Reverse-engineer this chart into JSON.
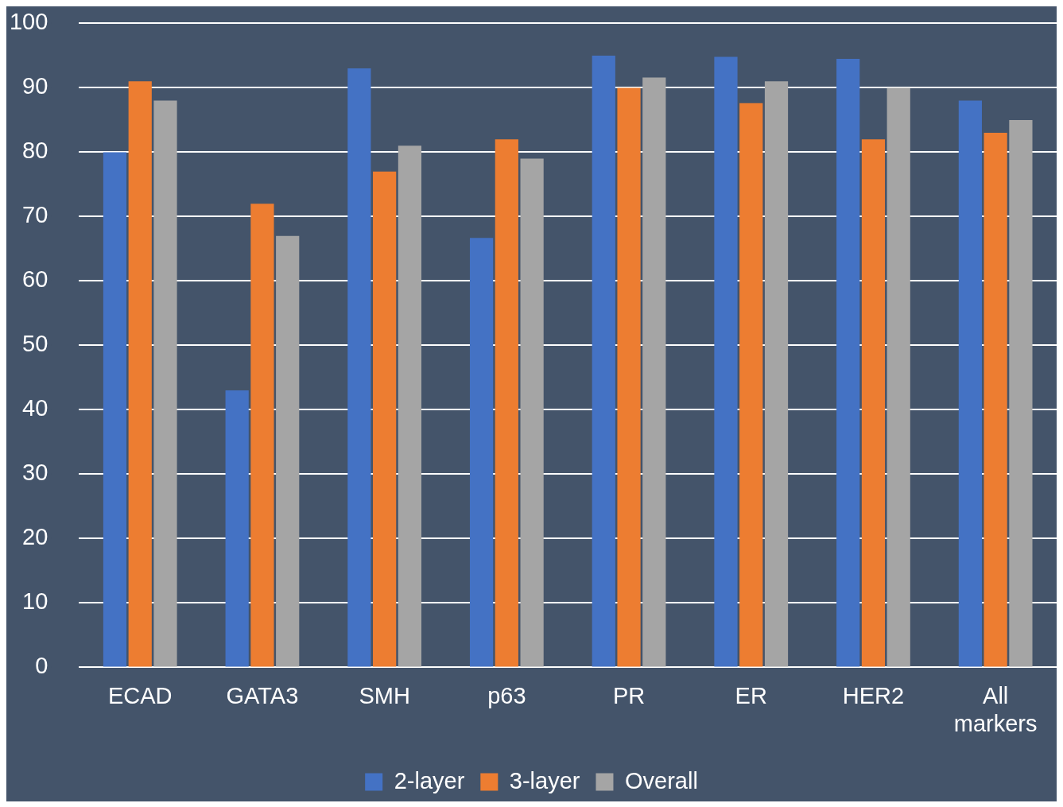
{
  "chart_data": {
    "type": "bar",
    "categories": [
      "ECAD",
      "GATA3",
      "SMH",
      "p63",
      "PR",
      "ER",
      "HER2",
      "All markers"
    ],
    "series": [
      {
        "name": "2-layer",
        "color": "#4472c4",
        "values": [
          80,
          43,
          93,
          66.7,
          95,
          94.8,
          94.5,
          88
        ]
      },
      {
        "name": "3-layer",
        "color": "#ed7d31",
        "values": [
          91,
          72,
          77,
          82,
          90,
          87.6,
          82,
          83
        ]
      },
      {
        "name": "Overall",
        "color": "#a5a5a5",
        "values": [
          88,
          67,
          81,
          79,
          91.6,
          91,
          90,
          85
        ]
      }
    ],
    "ylim": [
      0,
      100
    ],
    "yticks": [
      0,
      10,
      20,
      30,
      40,
      50,
      60,
      70,
      80,
      90,
      100
    ],
    "grid": "y",
    "legend": "bottom"
  }
}
